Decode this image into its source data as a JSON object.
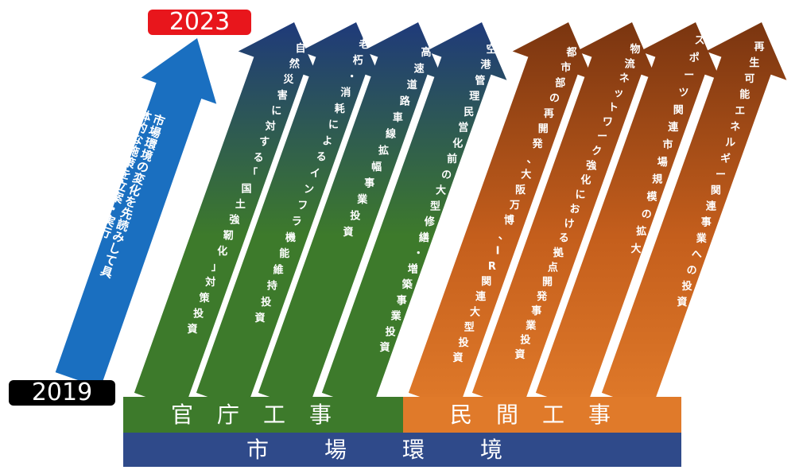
{
  "years": {
    "start": "2019",
    "end": "2023"
  },
  "main_arrow": {
    "text": "市場環境の変化を先読みして具体的な施策を立案・実行"
  },
  "bands": {
    "public": "官庁工事",
    "private": "民間工事",
    "market": "市場環境"
  },
  "public_arrows": [
    {
      "text": "自然災害に対する「国土強靭化」対策投資"
    },
    {
      "text": "老朽・消耗によるインフラ機能維持投資"
    },
    {
      "text": "高速道路車線拡幅事業投資"
    },
    {
      "text": "空港管理民営化前の大型修繕・増築事業投資"
    }
  ],
  "private_arrows": [
    {
      "text": "都市部の再開発、大阪万博、IR関連大型投資"
    },
    {
      "text": "物流ネットワーク強化における拠点開発事業投資"
    },
    {
      "text": "スポーツ関連市場規模の拡大"
    },
    {
      "text": "再生可能エネルギー関連事業への投資"
    }
  ],
  "colors": {
    "green": "#3d7a2b",
    "navy": "#1f3a7a",
    "orange": "#e07a2a",
    "brown": "#7a3510",
    "blue": "#1a6fc0",
    "red": "#e8161c",
    "black": "#000000",
    "market_band": "#2f4a8a"
  }
}
